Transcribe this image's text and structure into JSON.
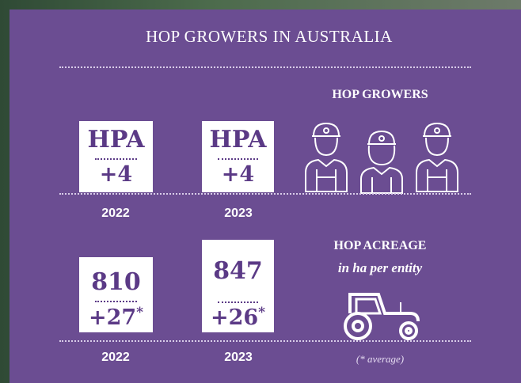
{
  "title": "HOP GROWERS IN AUSTRALIA",
  "growers": {
    "heading": "HOP GROWERS",
    "cards": [
      {
        "top": "HPA",
        "bottom": "+4",
        "year": "2022"
      },
      {
        "top": "HPA",
        "bottom": "+4",
        "year": "2023"
      }
    ]
  },
  "acreage": {
    "heading": "HOP ACREAGE",
    "subheading": "in ha per entity",
    "cards": [
      {
        "top": "810",
        "bottom": "+27",
        "mark": "*",
        "year": "2022"
      },
      {
        "top": "847",
        "bottom": "+26",
        "mark": "*",
        "year": "2023"
      }
    ],
    "note": "(* average)"
  }
}
